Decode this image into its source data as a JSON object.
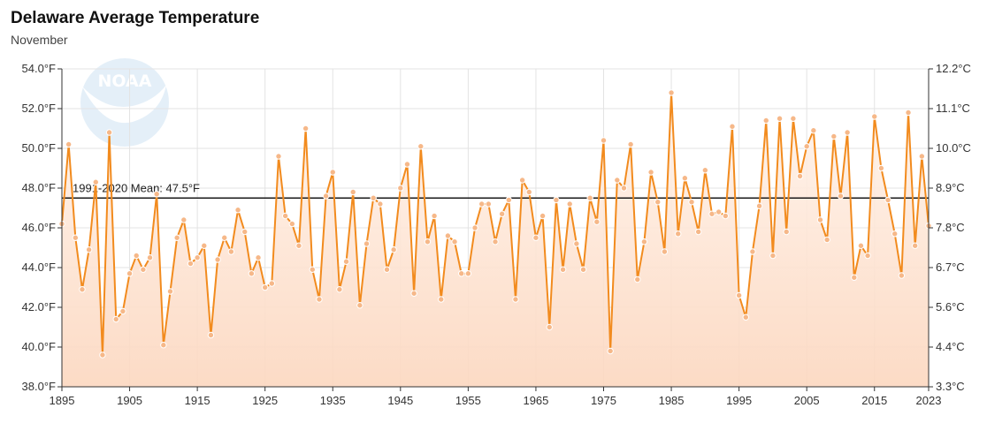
{
  "header": {
    "title": "Delaware Average Temperature",
    "subtitle": "November"
  },
  "logo_text": "NOAA",
  "colors": {
    "line": "#f28b1e",
    "area_top": "#fde4d2",
    "area_bottom": "#fbd3bb",
    "marker_fill": "#f6b889",
    "mean": "#1a1a1a",
    "grid": "#e3e3e3"
  },
  "chart_data": {
    "type": "line",
    "title": "Delaware Average Temperature",
    "subtitle": "November",
    "xlabel": "",
    "ylabel": "",
    "ylim": [
      38,
      54
    ],
    "xlim": [
      1895,
      2023
    ],
    "y_ticks": [
      "38.0°F",
      "40.0°F",
      "42.0°F",
      "44.0°F",
      "46.0°F",
      "48.0°F",
      "50.0°F",
      "52.0°F",
      "54.0°F"
    ],
    "y2_ticks": [
      "3.3°C",
      "4.4°C",
      "5.6°C",
      "6.7°C",
      "7.8°C",
      "8.9°C",
      "10.0°C",
      "11.1°C",
      "12.2°C"
    ],
    "x_ticks": [
      "1895",
      "1905",
      "1915",
      "1925",
      "1935",
      "1945",
      "1955",
      "1965",
      "1975",
      "1985",
      "1995",
      "2005",
      "2015",
      "2023"
    ],
    "mean": {
      "label": "1991-2020 Mean: 47.5°F",
      "value": 47.5
    },
    "grid": true,
    "x": [
      1895,
      1896,
      1897,
      1898,
      1899,
      1900,
      1901,
      1902,
      1903,
      1904,
      1905,
      1906,
      1907,
      1908,
      1909,
      1910,
      1911,
      1912,
      1913,
      1914,
      1915,
      1916,
      1917,
      1918,
      1919,
      1920,
      1921,
      1922,
      1923,
      1924,
      1925,
      1926,
      1927,
      1928,
      1929,
      1930,
      1931,
      1932,
      1933,
      1934,
      1935,
      1936,
      1937,
      1938,
      1939,
      1940,
      1941,
      1942,
      1943,
      1944,
      1945,
      1946,
      1947,
      1948,
      1949,
      1950,
      1951,
      1952,
      1953,
      1954,
      1955,
      1956,
      1957,
      1958,
      1959,
      1960,
      1961,
      1962,
      1963,
      1964,
      1965,
      1966,
      1967,
      1968,
      1969,
      1970,
      1971,
      1972,
      1973,
      1974,
      1975,
      1976,
      1977,
      1978,
      1979,
      1980,
      1981,
      1982,
      1983,
      1984,
      1985,
      1986,
      1987,
      1988,
      1989,
      1990,
      1991,
      1992,
      1993,
      1994,
      1995,
      1996,
      1997,
      1998,
      1999,
      2000,
      2001,
      2002,
      2003,
      2004,
      2005,
      2006,
      2007,
      2008,
      2009,
      2010,
      2011,
      2012,
      2013,
      2014,
      2015,
      2016,
      2017,
      2018,
      2019,
      2020,
      2021,
      2022,
      2023
    ],
    "values": [
      46.2,
      50.2,
      45.5,
      42.9,
      44.9,
      48.3,
      39.6,
      50.8,
      41.4,
      41.8,
      43.7,
      44.6,
      43.9,
      44.5,
      47.7,
      40.1,
      42.8,
      45.5,
      46.4,
      44.2,
      44.5,
      45.1,
      40.6,
      44.4,
      45.5,
      44.8,
      46.9,
      45.8,
      43.7,
      44.5,
      43.0,
      43.2,
      49.6,
      46.6,
      46.2,
      45.1,
      51.0,
      43.9,
      42.4,
      47.6,
      48.8,
      42.9,
      44.3,
      47.8,
      42.1,
      45.2,
      47.5,
      47.2,
      43.9,
      44.9,
      48.0,
      49.2,
      42.7,
      50.1,
      45.3,
      46.6,
      42.4,
      45.6,
      45.3,
      43.7,
      43.7,
      46.0,
      47.2,
      47.2,
      45.3,
      46.7,
      47.4,
      42.4,
      48.4,
      47.8,
      45.5,
      46.6,
      41.0,
      47.4,
      43.9,
      47.2,
      45.2,
      43.9,
      47.5,
      46.3,
      50.4,
      39.8,
      48.4,
      48.0,
      50.2,
      43.4,
      45.3,
      48.8,
      47.3,
      44.8,
      52.8,
      45.7,
      48.5,
      47.3,
      45.8,
      48.9,
      46.7,
      46.8,
      46.6,
      51.1,
      42.6,
      41.5,
      44.8,
      47.1,
      51.4,
      44.6,
      51.5,
      45.8,
      51.5,
      48.6,
      50.1,
      50.9,
      46.4,
      45.4,
      50.6,
      47.6,
      50.8,
      43.5,
      45.1,
      44.6,
      51.6,
      49.0,
      47.4,
      45.7,
      43.6,
      51.8,
      45.1,
      49.6,
      46.1
    ]
  }
}
